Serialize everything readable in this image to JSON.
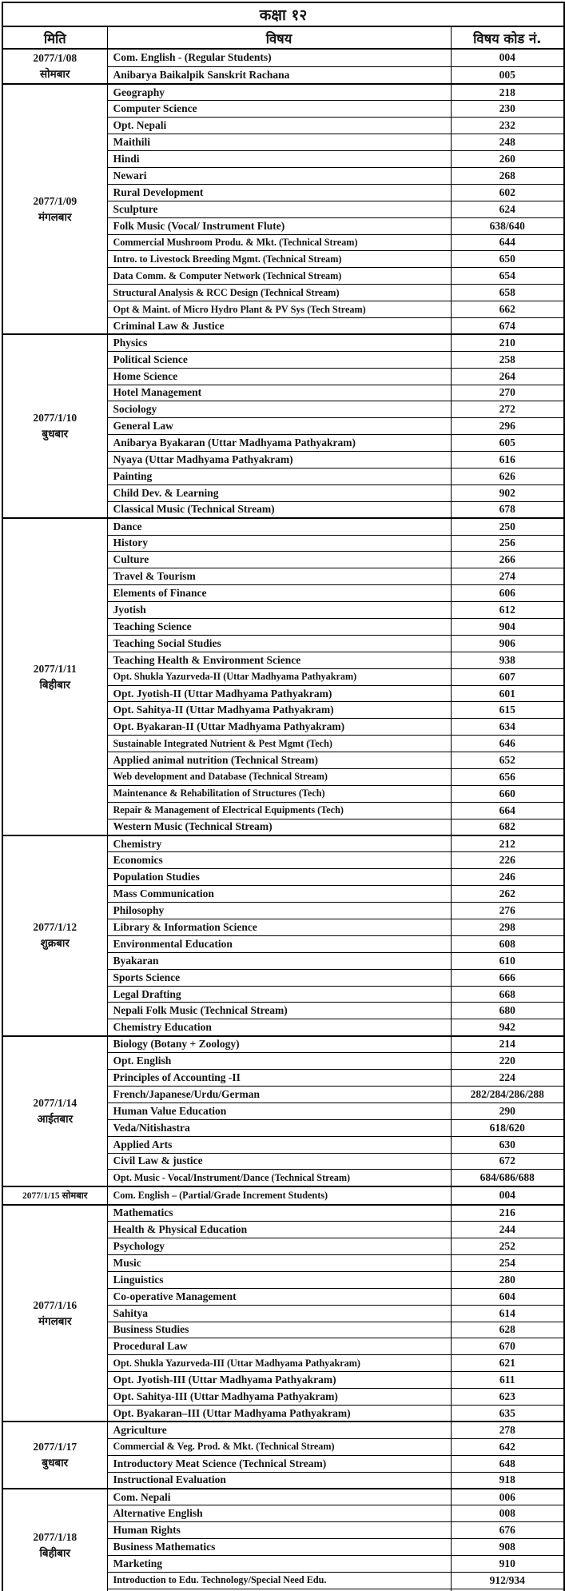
{
  "title": "कक्षा १२",
  "columns": {
    "date": "मिति",
    "subject": "विषय",
    "code": "विषय कोड नं."
  },
  "groups": [
    {
      "date": "2077/1/08",
      "day": "सोमबार",
      "inline": false,
      "subjects": [
        {
          "name": "Com. English - (Regular Students)",
          "code": "004"
        },
        {
          "name": "Anibarya Baikalpik Sanskrit Rachana",
          "code": "005"
        }
      ]
    },
    {
      "date": "2077/1/09",
      "day": "मंगलबार",
      "inline": false,
      "subjects": [
        {
          "name": "Geography",
          "code": "218"
        },
        {
          "name": "Computer Science",
          "code": "230"
        },
        {
          "name": "Opt. Nepali",
          "code": "232"
        },
        {
          "name": "Maithili",
          "code": "248"
        },
        {
          "name": "Hindi",
          "code": "260"
        },
        {
          "name": "Newari",
          "code": "268"
        },
        {
          "name": "Rural Development",
          "code": "602"
        },
        {
          "name": "Sculpture",
          "code": "624"
        },
        {
          "name": "Folk Music (Vocal/ Instrument Flute)",
          "code": "638/640"
        },
        {
          "name": "Commercial Mushroom Produ. & Mkt.  (Technical Stream)",
          "code": "644"
        },
        {
          "name": "Intro. to Livestock Breeding Mgmt. (Technical Stream)",
          "code": "650"
        },
        {
          "name": "Data Comm. & Computer Network (Technical Stream)",
          "code": "654"
        },
        {
          "name": "Structural Analysis & RCC Design (Technical Stream)",
          "code": "658"
        },
        {
          "name": "Opt & Maint. of Micro Hydro Plant & PV Sys (Tech Stream)",
          "code": "662"
        },
        {
          "name": "Criminal Law & Justice",
          "code": "674"
        }
      ]
    },
    {
      "date": "2077/1/10",
      "day": "बुधबार",
      "inline": false,
      "subjects": [
        {
          "name": "Physics",
          "code": "210"
        },
        {
          "name": "Political Science",
          "code": "258"
        },
        {
          "name": "Home Science",
          "code": "264"
        },
        {
          "name": "Hotel Management",
          "code": "270"
        },
        {
          "name": "Sociology",
          "code": "272"
        },
        {
          "name": "General Law",
          "code": "296"
        },
        {
          "name": "Anibarya Byakaran (Uttar Madhyama Pathyakram)",
          "code": "605"
        },
        {
          "name": "Nyaya (Uttar Madhyama Pathyakram)",
          "code": "616"
        },
        {
          "name": "Painting",
          "code": "626"
        },
        {
          "name": "Child Dev. & Learning",
          "code": "902"
        },
        {
          "name": "Classical Music (Technical Stream)",
          "code": "678"
        }
      ]
    },
    {
      "date": "2077/1/11",
      "day": "बिहीबार",
      "inline": false,
      "subjects": [
        {
          "name": "Dance",
          "code": "250"
        },
        {
          "name": "History",
          "code": "256"
        },
        {
          "name": "Culture",
          "code": "266"
        },
        {
          "name": "Travel & Tourism",
          "code": "274"
        },
        {
          "name": "Elements of Finance",
          "code": "606"
        },
        {
          "name": "Jyotish",
          "code": "612"
        },
        {
          "name": "Teaching Science",
          "code": "904"
        },
        {
          "name": "Teaching Social Studies",
          "code": "906"
        },
        {
          "name": "Teaching Health & Environment Science",
          "code": "938"
        },
        {
          "name": "Opt. Shukla Yazurveda-II (Uttar Madhyama Pathyakram)",
          "code": "607"
        },
        {
          "name": "Opt. Jyotish-II (Uttar Madhyama Pathyakram)",
          "code": "601"
        },
        {
          "name": "Opt. Sahitya-II (Uttar Madhyama Pathyakram)",
          "code": "615"
        },
        {
          "name": "Opt. Byakaran-II (Uttar Madhyama Pathyakram)",
          "code": "634"
        },
        {
          "name": "Sustainable Integrated Nutrient & Pest Mgmt (Tech)",
          "code": "646"
        },
        {
          "name": "Applied animal nutrition (Technical Stream)",
          "code": "652"
        },
        {
          "name": "Web development and Database (Technical Stream)",
          "code": "656"
        },
        {
          "name": "Maintenance & Rehabilitation of Structures (Tech)",
          "code": "660"
        },
        {
          "name": "Repair & Management of Electrical Equipments (Tech)",
          "code": "664"
        },
        {
          "name": "Western Music (Technical Stream)",
          "code": "682"
        }
      ]
    },
    {
      "date": "2077/1/12",
      "day": "शुक्रबार",
      "inline": false,
      "subjects": [
        {
          "name": "Chemistry",
          "code": "212"
        },
        {
          "name": "Economics",
          "code": "226"
        },
        {
          "name": "Population Studies",
          "code": "246"
        },
        {
          "name": "Mass Communication",
          "code": "262"
        },
        {
          "name": "Philosophy",
          "code": "276"
        },
        {
          "name": "Library & Information Science",
          "code": "298"
        },
        {
          "name": "Environmental Education",
          "code": "608"
        },
        {
          "name": "Byakaran",
          "code": "610"
        },
        {
          "name": "Sports Science",
          "code": "666"
        },
        {
          "name": "Legal Drafting",
          "code": "668"
        },
        {
          "name": "Nepali Folk Music (Technical Stream)",
          "code": "680"
        },
        {
          "name": "Chemistry Education",
          "code": "942"
        }
      ]
    },
    {
      "date": "2077/1/14",
      "day": "आईतबार",
      "inline": false,
      "subjects": [
        {
          "name": "Biology  (Botany + Zoology)",
          "code": "214"
        },
        {
          "name": "Opt. English",
          "code": "220"
        },
        {
          "name": "Principles of Accounting -II",
          "code": "224"
        },
        {
          "name": "French/Japanese/Urdu/German",
          "code": "282/284/286/288"
        },
        {
          "name": "Human Value Education",
          "code": "290"
        },
        {
          "name": "Veda/Nitishastra",
          "code": "618/620"
        },
        {
          "name": "Applied Arts",
          "code": "630"
        },
        {
          "name": "Civil Law & justice",
          "code": "672"
        },
        {
          "name": "Opt. Music - Vocal/Instrument/Dance (Technical Stream)",
          "code": "684/686/688"
        }
      ]
    },
    {
      "date": "2077/1/15",
      "day": "सोमबार",
      "inline": true,
      "subjects": [
        {
          "name": "Com. English – (Partial/Grade Increment Students)",
          "code": "004"
        }
      ]
    },
    {
      "date": "2077/1/16",
      "day": "मंगलबार",
      "inline": false,
      "subjects": [
        {
          "name": "Mathematics",
          "code": "216"
        },
        {
          "name": "Health & Physical Education",
          "code": "244"
        },
        {
          "name": "Psychology",
          "code": "252"
        },
        {
          "name": "Music",
          "code": "254"
        },
        {
          "name": "Linguistics",
          "code": "280"
        },
        {
          "name": "Co-operative Management",
          "code": "604"
        },
        {
          "name": "Sahitya",
          "code": "614"
        },
        {
          "name": "Business Studies",
          "code": "628"
        },
        {
          "name": "Procedural Law",
          "code": "670"
        },
        {
          "name": "Opt. Shukla Yazurveda-III (Uttar Madhyama Pathyakram)",
          "code": "621"
        },
        {
          "name": "Opt. Jyotish-III (Uttar Madhyama Pathyakram)",
          "code": "611"
        },
        {
          "name": "Opt. Sahitya-III (Uttar Madhyama Pathyakram)",
          "code": "623"
        },
        {
          "name": "Opt. Byakaran–III (Uttar Madhyama Pathyakram)",
          "code": "635"
        }
      ]
    },
    {
      "date": "2077/1/17",
      "day": "बुधबार",
      "inline": false,
      "subjects": [
        {
          "name": "Agriculture",
          "code": "278"
        },
        {
          "name": "Commercial &  Veg. Prod. & Mkt.  (Technical Stream)",
          "code": "642"
        },
        {
          "name": "Introductory Meat Science  (Technical Stream)",
          "code": "648"
        },
        {
          "name": "Instructional Evaluation",
          "code": "918"
        }
      ]
    },
    {
      "date": "2077/1/18",
      "day": "बिहीबार",
      "inline": false,
      "subjects": [
        {
          "name": "Com. Nepali",
          "code": "006"
        },
        {
          "name": "Alternative English",
          "code": "008"
        },
        {
          "name": "Human Rights",
          "code": "676"
        },
        {
          "name": "Business Mathematics",
          "code": "908"
        },
        {
          "name": "Marketing",
          "code": "910"
        },
        {
          "name": "Introduction to Edu. Technology/Special Need Edu.",
          "code": "912/934"
        }
      ]
    }
  ]
}
